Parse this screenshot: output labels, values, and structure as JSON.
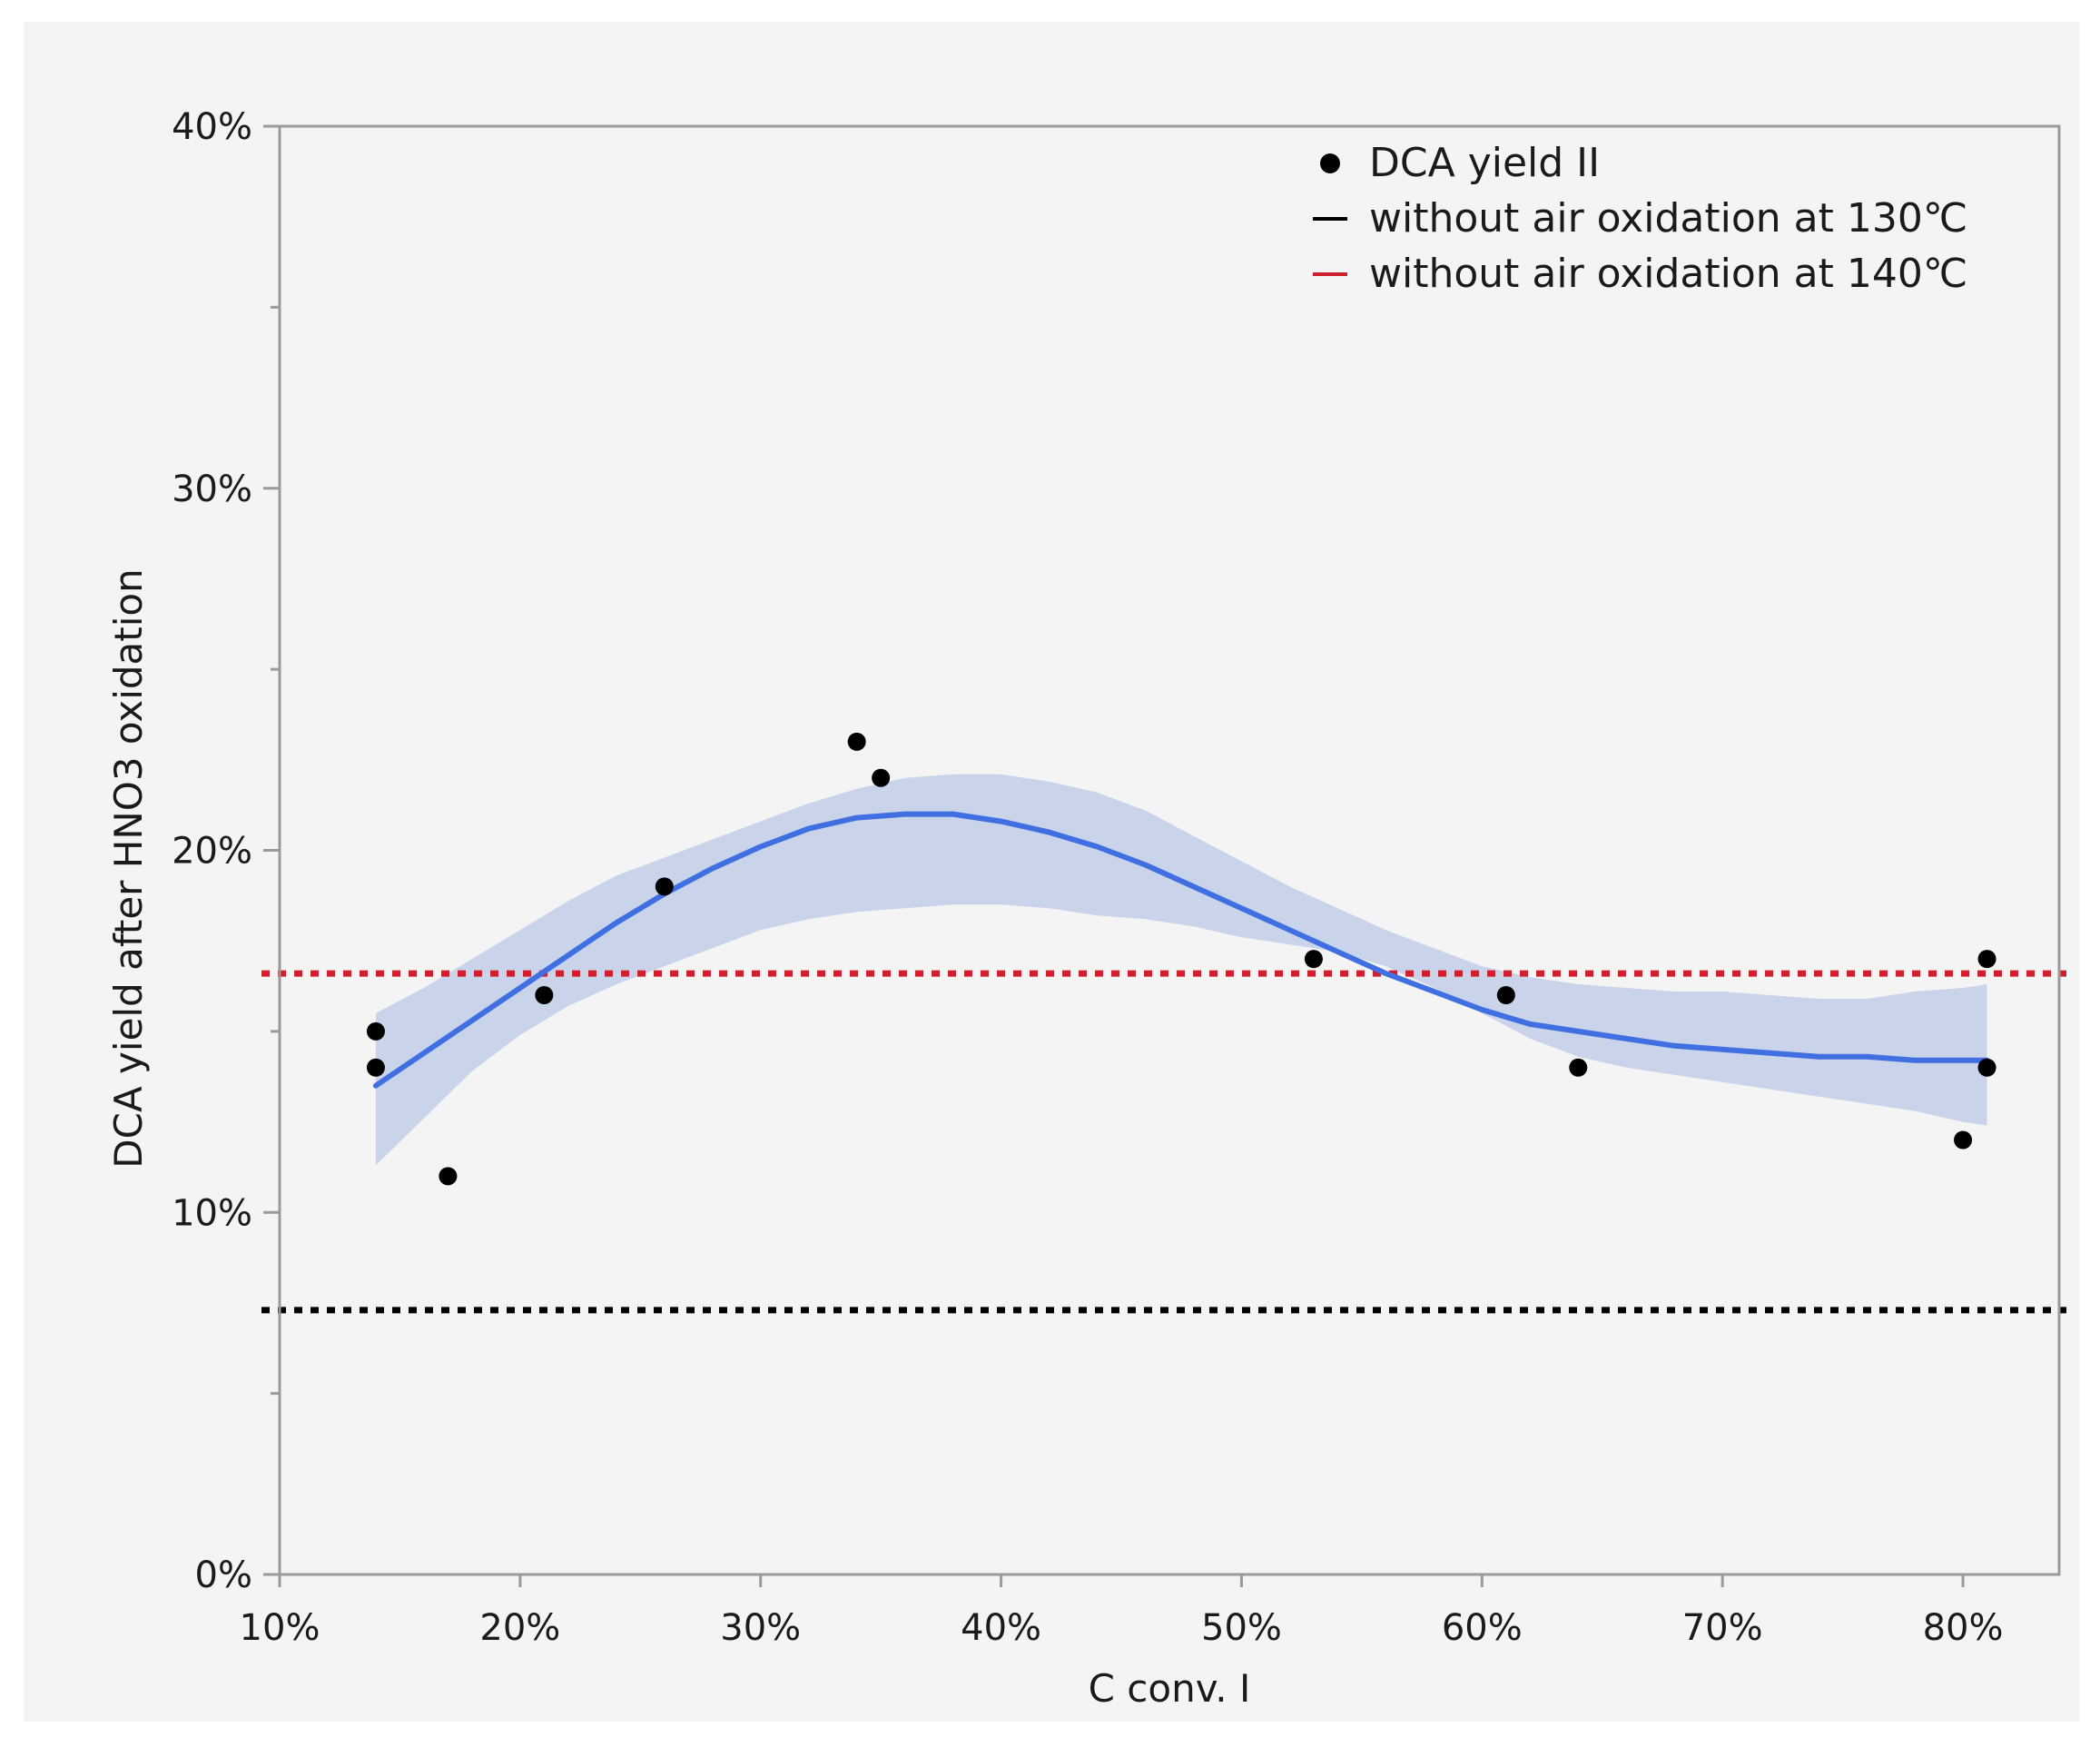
{
  "chart_data": {
    "type": "scatter",
    "title": "",
    "xlabel": "C conv. I",
    "ylabel": "DCA yield after HNO3 oxidation",
    "xlim": [
      0.1,
      0.84
    ],
    "ylim": [
      0.0,
      0.4
    ],
    "x_ticks": [
      0.1,
      0.2,
      0.3,
      0.4,
      0.5,
      0.6,
      0.7,
      0.8
    ],
    "x_tick_labels": [
      "10%",
      "20%",
      "30%",
      "40%",
      "50%",
      "60%",
      "70%",
      "80%"
    ],
    "y_ticks": [
      0.0,
      0.1,
      0.2,
      0.3,
      0.4
    ],
    "y_tick_labels": [
      "0%",
      "10%",
      "20%",
      "30%",
      "40%"
    ],
    "y_minor_ticks": [
      0.05,
      0.15,
      0.25,
      0.35
    ],
    "grid": false,
    "legend_position": "top-right",
    "legend": [
      {
        "label": "DCA yield II",
        "marker": "dot",
        "color": "#000000"
      },
      {
        "label": "without air oxidation at 130℃",
        "marker": "line",
        "color": "#000000"
      },
      {
        "label": "without air oxidation at 140℃",
        "marker": "line",
        "color": "#d0202e"
      }
    ],
    "series": [
      {
        "name": "DCA yield II",
        "type": "scatter",
        "color": "#000000",
        "points": [
          {
            "x": 0.14,
            "y": 0.15
          },
          {
            "x": 0.14,
            "y": 0.14
          },
          {
            "x": 0.17,
            "y": 0.11
          },
          {
            "x": 0.21,
            "y": 0.16
          },
          {
            "x": 0.26,
            "y": 0.19
          },
          {
            "x": 0.34,
            "y": 0.23
          },
          {
            "x": 0.35,
            "y": 0.22
          },
          {
            "x": 0.53,
            "y": 0.17
          },
          {
            "x": 0.61,
            "y": 0.16
          },
          {
            "x": 0.64,
            "y": 0.14
          },
          {
            "x": 0.8,
            "y": 0.12
          },
          {
            "x": 0.81,
            "y": 0.17
          },
          {
            "x": 0.81,
            "y": 0.14
          }
        ]
      },
      {
        "name": "smoother fit",
        "type": "line",
        "color": "#3f6fe0",
        "x": [
          0.14,
          0.16,
          0.18,
          0.2,
          0.22,
          0.24,
          0.26,
          0.28,
          0.3,
          0.32,
          0.34,
          0.36,
          0.38,
          0.4,
          0.42,
          0.44,
          0.46,
          0.48,
          0.5,
          0.52,
          0.54,
          0.56,
          0.58,
          0.6,
          0.62,
          0.64,
          0.66,
          0.68,
          0.7,
          0.72,
          0.74,
          0.76,
          0.78,
          0.8,
          0.81
        ],
        "y": [
          0.135,
          0.144,
          0.153,
          0.162,
          0.171,
          0.18,
          0.188,
          0.195,
          0.201,
          0.206,
          0.209,
          0.21,
          0.21,
          0.208,
          0.205,
          0.201,
          0.196,
          0.19,
          0.184,
          0.178,
          0.172,
          0.166,
          0.161,
          0.156,
          0.152,
          0.15,
          0.148,
          0.146,
          0.145,
          0.144,
          0.143,
          0.143,
          0.142,
          0.142,
          0.142
        ]
      },
      {
        "name": "confidence band",
        "type": "area",
        "color": "#c9d3ea",
        "x": [
          0.14,
          0.16,
          0.18,
          0.2,
          0.22,
          0.24,
          0.26,
          0.28,
          0.3,
          0.32,
          0.34,
          0.36,
          0.38,
          0.4,
          0.42,
          0.44,
          0.46,
          0.48,
          0.5,
          0.52,
          0.54,
          0.56,
          0.58,
          0.6,
          0.62,
          0.64,
          0.66,
          0.68,
          0.7,
          0.72,
          0.74,
          0.76,
          0.78,
          0.8,
          0.81
        ],
        "upper": [
          0.155,
          0.162,
          0.17,
          0.178,
          0.186,
          0.193,
          0.198,
          0.203,
          0.208,
          0.213,
          0.217,
          0.22,
          0.221,
          0.221,
          0.219,
          0.216,
          0.211,
          0.204,
          0.197,
          0.19,
          0.184,
          0.178,
          0.173,
          0.168,
          0.165,
          0.163,
          0.162,
          0.161,
          0.161,
          0.16,
          0.159,
          0.159,
          0.161,
          0.162,
          0.163
        ],
        "lower": [
          0.113,
          0.126,
          0.139,
          0.149,
          0.157,
          0.163,
          0.168,
          0.173,
          0.178,
          0.181,
          0.183,
          0.184,
          0.185,
          0.185,
          0.184,
          0.182,
          0.181,
          0.179,
          0.176,
          0.174,
          0.172,
          0.168,
          0.162,
          0.155,
          0.148,
          0.143,
          0.14,
          0.138,
          0.136,
          0.134,
          0.132,
          0.13,
          0.128,
          0.125,
          0.124
        ]
      },
      {
        "name": "without air oxidation at 130℃",
        "type": "hline",
        "color": "#000000",
        "y": 0.073,
        "style": "dotted"
      },
      {
        "name": "without air oxidation at 140℃",
        "type": "hline",
        "color": "#d0202e",
        "y": 0.166,
        "style": "dotted"
      }
    ]
  }
}
